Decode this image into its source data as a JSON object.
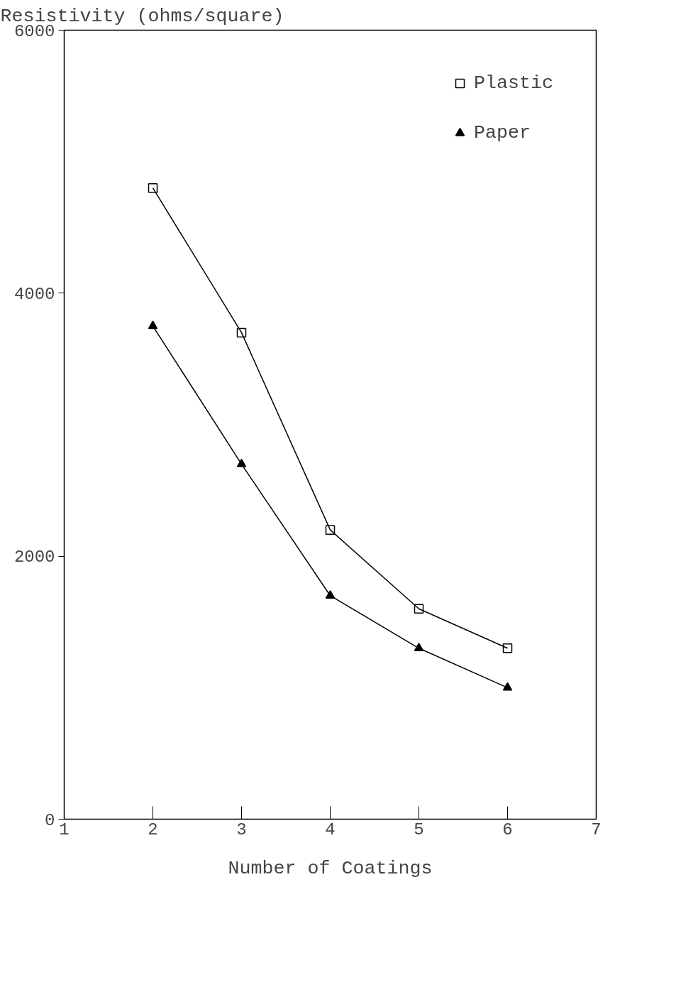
{
  "chart_data": {
    "type": "line",
    "xlabel": "Number of Coatings",
    "ylabel": "Resistivity (ohms/square)",
    "x": [
      2,
      3,
      4,
      5,
      6
    ],
    "series": [
      {
        "name": "Plastic",
        "color": "#000000",
        "marker": "square",
        "values": [
          4800,
          3700,
          2200,
          1600,
          1300
        ]
      },
      {
        "name": "Paper",
        "color": "#000000",
        "marker": "triangle",
        "values": [
          3750,
          2700,
          1700,
          1300,
          1000
        ]
      }
    ],
    "xlim": [
      1,
      7
    ],
    "ylim": [
      0,
      6000
    ],
    "xticks": [
      1,
      2,
      3,
      4,
      5,
      6,
      7
    ],
    "yticks": [
      0,
      2000,
      4000,
      6000
    ],
    "grid": false,
    "legend": "top right",
    "line_style": "solid"
  }
}
